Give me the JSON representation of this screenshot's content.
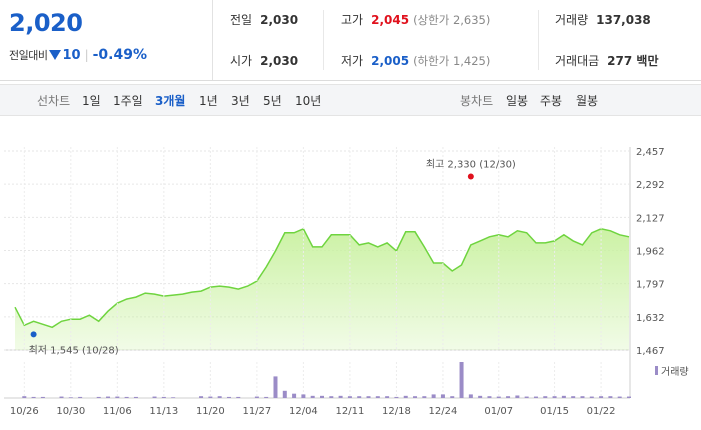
{
  "summary": {
    "price": "2,020",
    "change_label": "전일대비",
    "change_value": "10",
    "change_pct": "-0.49%",
    "prev_close_label": "전일",
    "prev_close": "2,030",
    "open_label": "시가",
    "open": "2,030",
    "high_label": "고가",
    "high": "2,045",
    "upper_limit": "(상한가 2,635)",
    "low_label": "저가",
    "low": "2,005",
    "lower_limit": "(하한가 1,425)",
    "volume_label": "거래량",
    "volume": "137,038",
    "amount_label": "거래대금",
    "amount": "277 백만"
  },
  "tabs": {
    "line_group": "선차트",
    "line": [
      "1일",
      "1주일",
      "3개월",
      "1년",
      "3년",
      "5년",
      "10년"
    ],
    "active": "3개월",
    "candle_group": "봉차트",
    "candle": [
      "일봉",
      "주봉",
      "월봉"
    ]
  },
  "colors": {
    "up": "#e0111d",
    "down": "#1a5fc8",
    "area": "#c9f1a0",
    "line": "#6fd43f",
    "volume": "#9b8cc7"
  },
  "chart_data": {
    "type": "area",
    "title": "",
    "xlabel": "",
    "ylabel": "",
    "ylim": [
      1467,
      2457
    ],
    "y_ticks": [
      1467,
      1632,
      1797,
      1962,
      2127,
      2292,
      2457
    ],
    "y_tick_labels": [
      "1,467",
      "1,632",
      "1,797",
      "1,962",
      "2,127",
      "2,292",
      "2,457"
    ],
    "x_tick_labels": [
      "10/26",
      "10/30",
      "11/06",
      "11/13",
      "11/20",
      "11/27",
      "12/04",
      "12/11",
      "12/18",
      "12/24",
      "01/07",
      "01/15",
      "01/22"
    ],
    "x_tick_index": [
      1,
      6,
      11,
      16,
      21,
      26,
      31,
      36,
      41,
      46,
      52,
      58,
      63
    ],
    "series": [
      {
        "values": [
          1680,
          1590,
          1610,
          1595,
          1580,
          1610,
          1620,
          1620,
          1640,
          1610,
          1660,
          1700,
          1720,
          1730,
          1750,
          1745,
          1735,
          1740,
          1745,
          1755,
          1760,
          1780,
          1785,
          1780,
          1770,
          1785,
          1810,
          1880,
          1960,
          2050,
          2050,
          2070,
          1980,
          1980,
          2040,
          2040,
          2040,
          1990,
          2000,
          1980,
          2000,
          1960,
          2055,
          2055,
          1980,
          1900,
          1900,
          1860,
          1890,
          1990,
          2010,
          2030,
          2040,
          2030,
          2060,
          2050,
          2000,
          2000,
          2010,
          2040,
          2010,
          1990,
          2050,
          2070,
          2060,
          2040,
          2030
        ],
        "volume": [
          0,
          0.05,
          0.03,
          0.03,
          0,
          0.04,
          0.02,
          0.03,
          0,
          0.03,
          0.04,
          0.04,
          0.03,
          0.03,
          0,
          0.04,
          0.03,
          0.02,
          0,
          0,
          0.05,
          0.04,
          0.05,
          0.03,
          0.03,
          0,
          0.04,
          0.03,
          0.6,
          0.2,
          0.12,
          0.1,
          0.06,
          0.06,
          0.05,
          0.06,
          0.05,
          0.05,
          0.05,
          0.05,
          0.05,
          0.03,
          0.06,
          0.05,
          0.05,
          0.1,
          0.1,
          0.05,
          1.0,
          0.1,
          0.06,
          0.05,
          0.04,
          0.05,
          0.07,
          0.04,
          0.04,
          0.05,
          0.05,
          0.06,
          0.05,
          0.05,
          0.04,
          0.05,
          0.05,
          0.04,
          0.04
        ]
      }
    ],
    "annotations": [
      {
        "text": "최고 2,330 (12/30)",
        "x_index": 49,
        "value": 2330,
        "color": "#e0111d"
      },
      {
        "text": "최저 1,545 (10/28)",
        "x_index": 2,
        "value": 1545,
        "color": "#1a5fc8"
      }
    ],
    "volume_legend": "거래량",
    "grid": true
  }
}
